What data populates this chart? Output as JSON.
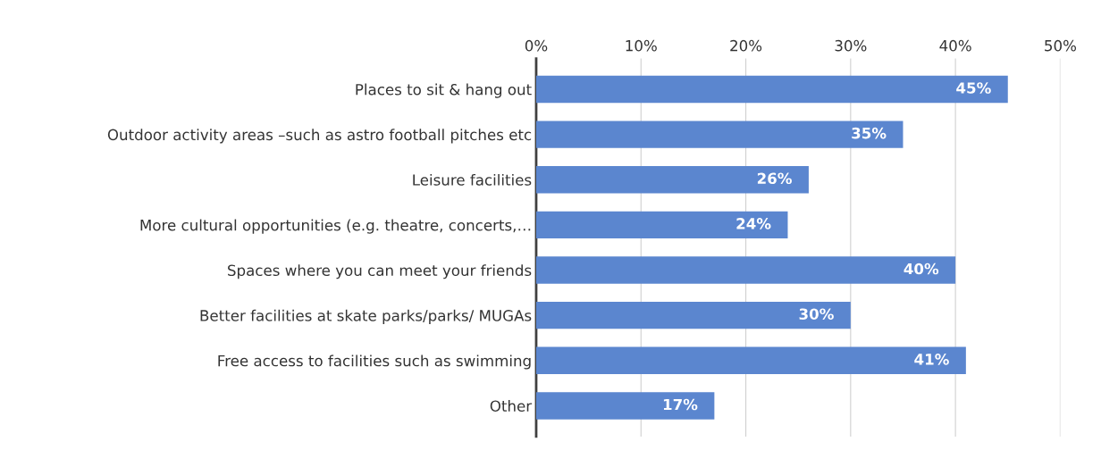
{
  "chart_data": {
    "type": "bar",
    "orientation": "horizontal",
    "categories": [
      "Places to sit & hang out",
      "Outdoor activity areas –such as astro football pitches etc",
      "Leisure facilities",
      "More cultural opportunities (e.g. theatre, concerts,…",
      "Spaces where you can meet your friends",
      "Better facilities at skate parks/parks/ MUGAs",
      "Free access to facilities such as swimming",
      "Other"
    ],
    "values": [
      45,
      35,
      26,
      24,
      40,
      30,
      41,
      17
    ],
    "value_labels": [
      "45%",
      "35%",
      "26%",
      "24%",
      "40%",
      "30%",
      "41%",
      "17%"
    ],
    "color": "#5b86cf",
    "xlim": [
      0,
      50
    ],
    "xticks": [
      {
        "value": 0,
        "label": "0%"
      },
      {
        "value": 10,
        "label": "10%"
      },
      {
        "value": 20,
        "label": "20%"
      },
      {
        "value": 30,
        "label": "30%"
      },
      {
        "value": 40,
        "label": "40%"
      },
      {
        "value": 50,
        "label": "50%"
      }
    ],
    "grid": "x",
    "legend": false
  }
}
